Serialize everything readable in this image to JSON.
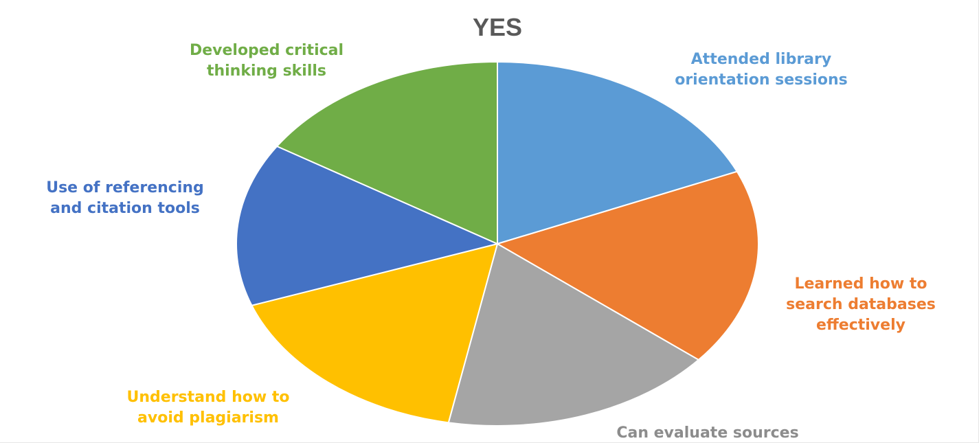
{
  "chart_data": {
    "type": "pie",
    "title": "YES",
    "categories": [
      "Attended library orientation sessions",
      "Learned how to search databases effectively",
      "Can evaluate sources",
      "Understand how to avoid plagiarism",
      "Use of referencing and citation tools",
      "Developed critical thinking skills"
    ],
    "values": [
      18.5,
      17.5,
      17.0,
      16.5,
      14.5,
      16.0
    ],
    "value_unit": "percent of total",
    "label_lines": [
      [
        "Attended library",
        "orientation sessions"
      ],
      [
        "Learned how to",
        "search databases",
        "effectively"
      ],
      [
        "Can evaluate sources"
      ],
      [
        "Understand how to",
        "avoid plagiarism"
      ],
      [
        "Use of referencing",
        "and citation tools"
      ],
      [
        "Developed critical",
        "thinking skills"
      ]
    ],
    "colors": [
      "#5b9bd5",
      "#ed7d31",
      "#a5a5a5",
      "#ffc000",
      "#4472c4",
      "#70ad47"
    ],
    "start_angle": "12 o'clock",
    "direction": "clockwise",
    "legend": "none",
    "labels": "outside slices, colored like their slice"
  }
}
